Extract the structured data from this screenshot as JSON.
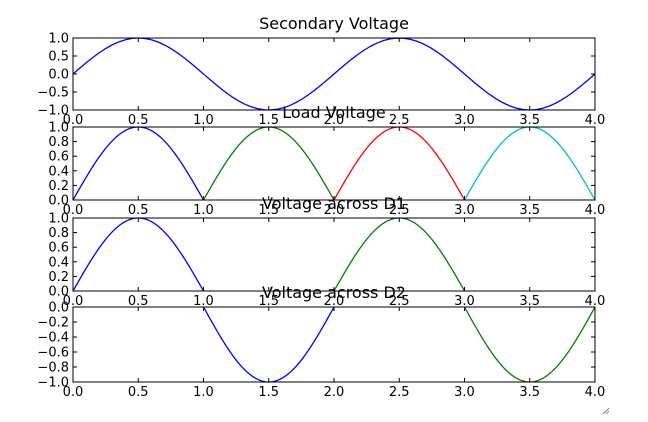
{
  "chart_data": [
    {
      "type": "line",
      "title": "Secondary Voltage",
      "xlabel": "",
      "ylabel": "",
      "xlim": [
        0,
        4
      ],
      "ylim": [
        -1,
        1
      ],
      "xticks": [
        "0.0",
        "0.5",
        "1.0",
        "1.5",
        "2.0",
        "2.5",
        "3.0",
        "3.5",
        "4.0"
      ],
      "yticks": [
        "1.0",
        "0.5",
        "0.0",
        "−0.5",
        "−1.0"
      ],
      "grid": false,
      "series": [
        {
          "x_range": [
            0,
            4
          ],
          "function": "sin(pi*x)",
          "color": "#0000ff"
        }
      ]
    },
    {
      "type": "line",
      "title": "Load Voltage",
      "xlabel": "",
      "ylabel": "",
      "xlim": [
        0,
        4
      ],
      "ylim": [
        0,
        1
      ],
      "xticks": [
        "0.0",
        "0.5",
        "1.0",
        "1.5",
        "2.0",
        "2.5",
        "3.0",
        "3.5",
        "4.0"
      ],
      "yticks": [
        "1.0",
        "0.8",
        "0.6",
        "0.4",
        "0.2",
        "0.0"
      ],
      "grid": false,
      "series": [
        {
          "x_range": [
            0,
            1
          ],
          "function": "abs(sin(pi*x))",
          "color": "#0000ff"
        },
        {
          "x_range": [
            1,
            2
          ],
          "function": "abs(sin(pi*x))",
          "color": "#008000"
        },
        {
          "x_range": [
            2,
            3
          ],
          "function": "abs(sin(pi*x))",
          "color": "#ff0000"
        },
        {
          "x_range": [
            3,
            4
          ],
          "function": "abs(sin(pi*x))",
          "color": "#00bfbf"
        }
      ]
    },
    {
      "type": "line",
      "title": "Voltage across D1",
      "xlabel": "",
      "ylabel": "",
      "xlim": [
        0,
        4
      ],
      "ylim": [
        0,
        1
      ],
      "xticks": [
        "0.0",
        "0.5",
        "1.0",
        "1.5",
        "2.0",
        "2.5",
        "3.0",
        "3.5",
        "4.0"
      ],
      "yticks": [
        "1.0",
        "0.8",
        "0.6",
        "0.4",
        "0.2",
        "0.0"
      ],
      "grid": false,
      "series": [
        {
          "x_range": [
            0,
            1
          ],
          "function": "sin(pi*x)",
          "color": "#0000ff"
        },
        {
          "x_range": [
            2,
            3
          ],
          "function": "sin(pi*x)",
          "color": "#008000"
        }
      ]
    },
    {
      "type": "line",
      "title": "Voltage across D2",
      "xlabel": "",
      "ylabel": "",
      "xlim": [
        0,
        4
      ],
      "ylim": [
        -1,
        0
      ],
      "xticks": [
        "0.0",
        "0.5",
        "1.0",
        "1.5",
        "2.0",
        "2.5",
        "3.0",
        "3.5",
        "4.0"
      ],
      "yticks": [
        "0.0",
        "−0.2",
        "−0.4",
        "−0.6",
        "−0.8",
        "−1.0"
      ],
      "grid": false,
      "series": [
        {
          "x_range": [
            1,
            2
          ],
          "function": "sin(pi*x)",
          "color": "#0000ff"
        },
        {
          "x_range": [
            3,
            4
          ],
          "function": "sin(pi*x)",
          "color": "#008000"
        }
      ]
    }
  ]
}
